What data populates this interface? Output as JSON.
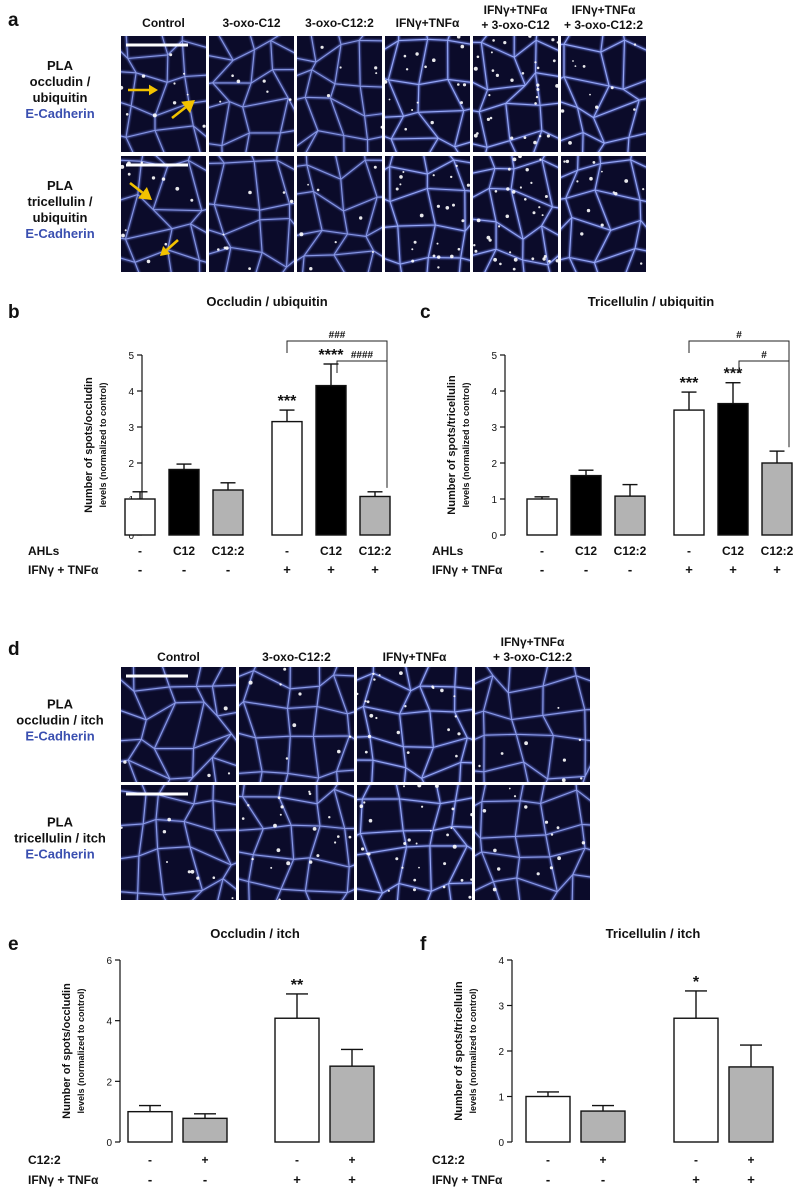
{
  "panels": {
    "a": {
      "letter": "a",
      "columns": [
        "Control",
        "3-oxo-C12",
        "3-oxo-C12:2",
        "IFNγ+TNFα",
        "IFNγ+TNFα\n+ 3-oxo-C12",
        "IFNγ+TNFα\n+ 3-oxo-C12:2"
      ],
      "rows": [
        {
          "lines": [
            "PLA",
            "occludin /",
            "ubiquitin"
          ],
          "stain": "E-Cadherin"
        },
        {
          "lines": [
            "PLA",
            "tricellulin /",
            "ubiquitin"
          ],
          "stain": "E-Cadherin"
        }
      ]
    },
    "d": {
      "letter": "d",
      "columns": [
        "Control",
        "3-oxo-C12:2",
        "IFNγ+TNFα",
        "IFNγ+TNFα\n+ 3-oxo-C12:2"
      ],
      "rows": [
        {
          "lines": [
            "PLA",
            "occludin / itch"
          ],
          "stain": "E-Cadherin"
        },
        {
          "lines": [
            "PLA",
            "tricellulin / itch"
          ],
          "stain": "E-Cadherin"
        }
      ]
    }
  },
  "chart_data": [
    {
      "id": "b",
      "letter": "b",
      "type": "bar",
      "title": "Occludin / ubiquitin",
      "ylabel": "Number of spots/occludin\nlevels (normalized to control)",
      "ylim": [
        0,
        5
      ],
      "yticks": [
        0,
        1,
        2,
        3,
        4,
        5
      ],
      "values": [
        1.0,
        1.82,
        1.25,
        3.15,
        4.15,
        1.07
      ],
      "errors": [
        0.2,
        0.15,
        0.2,
        0.32,
        0.6,
        0.13
      ],
      "fills": [
        "#ffffff",
        "#000000",
        "#b3b3b3",
        "#ffffff",
        "#000000",
        "#b3b3b3"
      ],
      "stars": [
        "",
        "",
        "",
        "***",
        "****",
        ""
      ],
      "brackets": [
        {
          "from": 3,
          "to": 5,
          "label": "###"
        },
        {
          "from": 4,
          "to": 5,
          "label": "####"
        }
      ],
      "row_labels": [
        "AHLs",
        "IFNγ + TNFα"
      ],
      "row1": [
        "-",
        "C12",
        "C12:2",
        "-",
        "C12",
        "C12:2"
      ],
      "row2": [
        "-",
        "-",
        "-",
        "+",
        "+",
        "+"
      ]
    },
    {
      "id": "c",
      "letter": "c",
      "type": "bar",
      "title": "Tricellulin / ubiquitin",
      "ylabel": "Number of spots/tricellulin\nlevels (normalized to control)",
      "ylim": [
        0,
        5
      ],
      "yticks": [
        0,
        1,
        2,
        3,
        4,
        5
      ],
      "values": [
        1.0,
        1.65,
        1.08,
        3.47,
        3.65,
        2.0
      ],
      "errors": [
        0.06,
        0.15,
        0.32,
        0.5,
        0.58,
        0.33
      ],
      "fills": [
        "#ffffff",
        "#000000",
        "#b3b3b3",
        "#ffffff",
        "#000000",
        "#b3b3b3"
      ],
      "stars": [
        "",
        "",
        "",
        "***",
        "***",
        ""
      ],
      "brackets": [
        {
          "from": 3,
          "to": 5,
          "label": "#"
        },
        {
          "from": 4,
          "to": 5,
          "label": "#"
        }
      ],
      "row_labels": [
        "AHLs",
        "IFNγ + TNFα"
      ],
      "row1": [
        "-",
        "C12",
        "C12:2",
        "-",
        "C12",
        "C12:2"
      ],
      "row2": [
        "-",
        "-",
        "-",
        "+",
        "+",
        "+"
      ]
    },
    {
      "id": "e",
      "letter": "e",
      "type": "bar",
      "title": "Occludin / itch",
      "ylabel": "Number of spots/occludin\nlevels (normalized to control)",
      "ylim": [
        0,
        6
      ],
      "yticks": [
        0,
        2,
        4,
        6
      ],
      "values": [
        1.0,
        0.78,
        4.08,
        2.5
      ],
      "errors": [
        0.2,
        0.15,
        0.8,
        0.55
      ],
      "fills": [
        "#ffffff",
        "#b3b3b3",
        "#ffffff",
        "#b3b3b3"
      ],
      "stars": [
        "",
        "",
        "**",
        ""
      ],
      "brackets": [],
      "row_labels": [
        "C12:2",
        "IFNγ + TNFα"
      ],
      "row1": [
        "-",
        "+",
        "-",
        "+"
      ],
      "row2": [
        "-",
        "-",
        "+",
        "+"
      ]
    },
    {
      "id": "f",
      "letter": "f",
      "type": "bar",
      "title": "Tricellulin / itch",
      "ylabel": "Number of spots/tricellulin\nlevels (normalized to control)",
      "ylim": [
        0,
        4
      ],
      "yticks": [
        0,
        1,
        2,
        3,
        4
      ],
      "values": [
        1.0,
        0.68,
        2.72,
        1.65
      ],
      "errors": [
        0.1,
        0.12,
        0.6,
        0.48
      ],
      "fills": [
        "#ffffff",
        "#b3b3b3",
        "#ffffff",
        "#b3b3b3"
      ],
      "stars": [
        "",
        "",
        "*",
        ""
      ],
      "brackets": [],
      "row_labels": [
        "C12:2",
        "IFNγ + TNFα"
      ],
      "row1": [
        "-",
        "+",
        "-",
        "+"
      ],
      "row2": [
        "-",
        "-",
        "+",
        "+"
      ]
    }
  ],
  "colors": {
    "stain": "#3a4fb0",
    "arrow": "#f2c200",
    "micro_bg": "#0b0b2a",
    "membrane": "#6b7de8"
  }
}
